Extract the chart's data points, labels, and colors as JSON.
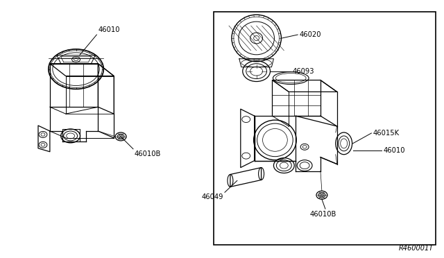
{
  "background_color": "#ffffff",
  "border_color": "#000000",
  "line_color": "#000000",
  "text_color": "#000000",
  "fig_width": 6.4,
  "fig_height": 3.72,
  "dpi": 100,
  "watermark": "R460001T",
  "labels": {
    "left_top": "46010",
    "left_bottom": "46010B",
    "right_cap": "46020",
    "right_gasket": "46093",
    "right_side_k": "46015K",
    "right_side": "46010",
    "right_bottom_left": "46049",
    "right_bottom": "46010B"
  }
}
